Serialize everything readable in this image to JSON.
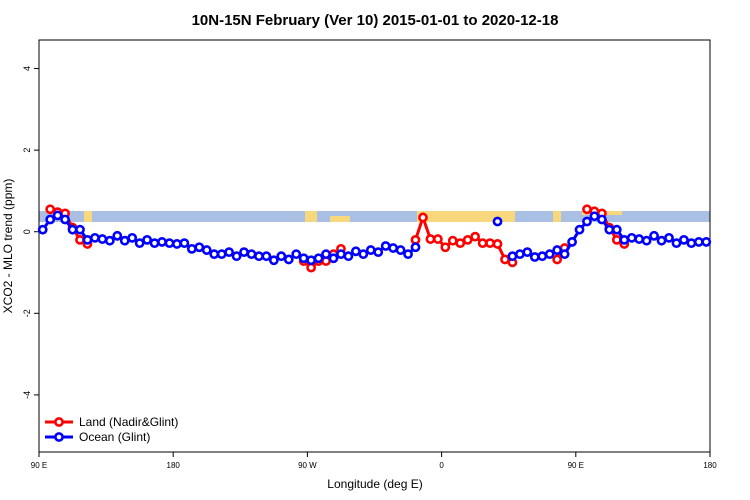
{
  "chart_data": {
    "type": "line",
    "title": "10N-15N February (Ver 10)   2015-01-01 to 2020-12-18",
    "xlabel": "Longitude (deg E)",
    "ylabel": "XCO2 - MLO trend (ppm)",
    "xlim": [
      90,
      540
    ],
    "ylim": [
      -5.4,
      4.7
    ],
    "xticks": [
      {
        "value": 90,
        "label": "90 E"
      },
      180,
      {
        "value": 270,
        "label": "90 W"
      },
      {
        "value": 360,
        "label": "0"
      },
      {
        "value": 450,
        "label": "90 E"
      },
      {
        "value": 540,
        "label": "180"
      }
    ],
    "yticks": [
      -4,
      -2,
      0,
      2,
      4
    ],
    "legend": "bottom-left",
    "x": [
      92.5,
      97.5,
      102.5,
      107.5,
      112.5,
      117.5,
      122.5,
      127.5,
      132.5,
      137.5,
      142.5,
      147.5,
      152.5,
      157.5,
      162.5,
      167.5,
      172.5,
      177.5,
      182.5,
      187.5,
      192.5,
      197.5,
      202.5,
      207.5,
      212.5,
      217.5,
      222.5,
      227.5,
      232.5,
      237.5,
      242.5,
      247.5,
      252.5,
      257.5,
      262.5,
      267.5,
      272.5,
      277.5,
      282.5,
      287.5,
      292.5,
      297.5,
      302.5,
      307.5,
      312.5,
      317.5,
      322.5,
      327.5,
      332.5,
      337.5,
      342.5,
      347.5,
      352.5,
      357.5,
      362.5,
      367.5,
      372.5,
      377.5,
      382.5,
      387.5,
      392.5,
      397.5,
      402.5,
      407.5,
      412.5,
      417.5,
      422.5,
      427.5,
      432.5,
      437.5,
      442.5,
      447.5,
      452.5,
      457.5,
      462.5,
      467.5,
      472.5,
      477.5,
      482.5,
      487.5,
      492.5,
      497.5,
      502.5,
      507.5,
      512.5,
      517.5,
      522.5,
      527.5,
      532.5,
      537.5
    ],
    "series": [
      {
        "name": "Land (Nadir&Glint)",
        "color": "#ff0000",
        "values": [
          null,
          0.55,
          0.48,
          0.45,
          0.1,
          -0.2,
          -0.3,
          null,
          null,
          null,
          null,
          null,
          null,
          null,
          null,
          null,
          null,
          null,
          null,
          null,
          null,
          null,
          null,
          null,
          null,
          null,
          null,
          null,
          null,
          null,
          null,
          null,
          null,
          null,
          null,
          -0.72,
          -0.88,
          -0.72,
          -0.72,
          -0.55,
          -0.42,
          null,
          null,
          null,
          null,
          null,
          null,
          null,
          null,
          null,
          -0.2,
          0.35,
          -0.18,
          -0.18,
          -0.38,
          -0.22,
          -0.28,
          -0.2,
          -0.12,
          -0.28,
          -0.28,
          -0.3,
          -0.68,
          -0.75,
          null,
          null,
          null,
          null,
          null,
          -0.68,
          -0.4,
          null,
          null,
          0.55,
          0.5,
          0.45,
          0.1,
          -0.2,
          -0.3,
          null,
          null,
          null,
          null,
          null,
          null,
          null,
          null,
          null,
          null,
          null
        ]
      },
      {
        "name": "Ocean (Glint)",
        "color": "#0000ff",
        "values": [
          0.05,
          0.3,
          0.4,
          0.3,
          0.05,
          0.05,
          -0.2,
          -0.15,
          -0.18,
          -0.22,
          -0.1,
          -0.22,
          -0.15,
          -0.28,
          -0.2,
          -0.28,
          -0.25,
          -0.28,
          -0.3,
          -0.28,
          -0.42,
          -0.38,
          -0.45,
          -0.55,
          -0.55,
          -0.5,
          -0.6,
          -0.5,
          -0.55,
          -0.6,
          -0.6,
          -0.7,
          -0.6,
          -0.68,
          -0.55,
          -0.65,
          -0.7,
          -0.65,
          -0.55,
          -0.65,
          -0.55,
          -0.6,
          -0.48,
          -0.55,
          -0.45,
          -0.5,
          -0.35,
          -0.4,
          -0.45,
          -0.55,
          -0.38,
          null,
          null,
          null,
          null,
          null,
          null,
          null,
          null,
          null,
          null,
          0.25,
          null,
          -0.6,
          -0.55,
          -0.5,
          -0.62,
          -0.6,
          -0.55,
          -0.45,
          -0.55,
          -0.25,
          0.05,
          0.25,
          0.38,
          0.3,
          0.05,
          0.05,
          -0.2,
          -0.15,
          -0.18,
          -0.22,
          -0.1,
          -0.22,
          -0.15,
          -0.28,
          -0.2,
          -0.28,
          -0.25,
          -0.25
        ]
      }
    ]
  }
}
